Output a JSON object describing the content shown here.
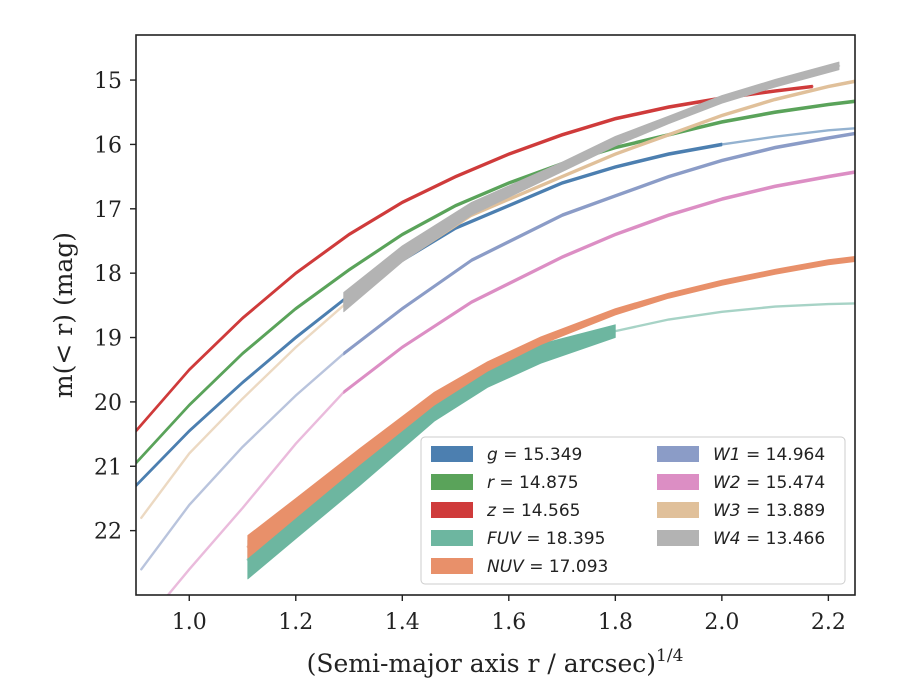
{
  "chart_data": {
    "type": "line",
    "xlabel": "(Semi-major axis r / arcsec)",
    "xlabel_sup": "1/4",
    "ylabel": "m(< r) (mag)",
    "xlim": [
      0.9,
      2.25
    ],
    "ylim": [
      23.0,
      14.3
    ],
    "y_inverted": true,
    "grid": false,
    "legend_position": "lower-right",
    "legend_columns": 2,
    "x_ticks": [
      1.0,
      1.2,
      1.4,
      1.6,
      1.8,
      2.0,
      2.2
    ],
    "x_tick_labels": [
      "1.0",
      "1.2",
      "1.4",
      "1.6",
      "1.8",
      "2.0",
      "2.2"
    ],
    "y_ticks": [
      15,
      16,
      17,
      18,
      19,
      20,
      21,
      22
    ],
    "y_tick_labels": [
      "15",
      "16",
      "17",
      "18",
      "19",
      "20",
      "21",
      "22"
    ],
    "series": [
      {
        "name": "g = 15.349",
        "label_var": "g",
        "label_val": "15.349",
        "color": "#4c7fb0",
        "x": [
          0.9,
          1.0,
          1.1,
          1.2,
          1.3,
          1.4,
          1.5,
          1.6,
          1.7,
          1.8,
          1.9,
          2.0,
          2.1,
          2.2,
          2.25
        ],
        "y": [
          21.3,
          20.45,
          19.7,
          19.0,
          18.35,
          17.8,
          17.3,
          16.95,
          16.6,
          16.35,
          16.15,
          16.0,
          15.88,
          15.78,
          15.75
        ],
        "width": [
          0,
          0,
          0,
          0,
          0,
          0,
          0,
          0,
          0,
          0,
          0,
          0,
          0,
          0,
          0
        ],
        "solid_range": [
          0.9,
          2.0
        ]
      },
      {
        "name": "r = 14.875",
        "label_var": "r",
        "label_val": "14.875",
        "color": "#5aa35a",
        "x": [
          0.9,
          1.0,
          1.1,
          1.2,
          1.3,
          1.4,
          1.5,
          1.6,
          1.7,
          1.8,
          1.9,
          2.0,
          2.1,
          2.2,
          2.25
        ],
        "y": [
          20.95,
          20.05,
          19.25,
          18.55,
          17.95,
          17.4,
          16.95,
          16.6,
          16.3,
          16.05,
          15.85,
          15.65,
          15.5,
          15.38,
          15.33
        ],
        "width": [
          0,
          0,
          0,
          0,
          0,
          0,
          0,
          0,
          0,
          0,
          0,
          0,
          0,
          0,
          0
        ],
        "solid_range": [
          0.9,
          2.25
        ]
      },
      {
        "name": "z = 14.565",
        "label_var": "z",
        "label_val": "14.565",
        "color": "#cf3b3b",
        "x": [
          0.9,
          1.0,
          1.1,
          1.2,
          1.3,
          1.4,
          1.5,
          1.6,
          1.7,
          1.8,
          1.9,
          2.0,
          2.1,
          2.17
        ],
        "y": [
          20.45,
          19.5,
          18.7,
          18.0,
          17.4,
          16.9,
          16.5,
          16.15,
          15.85,
          15.6,
          15.42,
          15.28,
          15.17,
          15.1
        ],
        "width": [
          0,
          0,
          0,
          0,
          0,
          0,
          0,
          0,
          0,
          0,
          0,
          0,
          0,
          0
        ],
        "solid_range": [
          0.9,
          2.17
        ]
      },
      {
        "name": "FUV = 18.395",
        "label_var": "FUV",
        "label_val": "18.395",
        "color": "#6db6a0",
        "x": [
          1.11,
          1.2,
          1.32,
          1.46,
          1.56,
          1.66,
          1.8,
          1.9,
          2.0,
          2.1,
          2.2,
          2.25
        ],
        "y": [
          22.45,
          21.85,
          21.05,
          20.1,
          19.6,
          19.25,
          18.9,
          18.72,
          18.6,
          18.52,
          18.48,
          18.47
        ],
        "width": [
          0.6,
          0.55,
          0.5,
          0.4,
          0.35,
          0.3,
          0.2,
          0,
          0,
          0,
          0,
          0
        ],
        "solid_range": [
          1.11,
          1.8
        ]
      },
      {
        "name": "NUV = 17.093",
        "label_var": "NUV",
        "label_val": "17.093",
        "color": "#e8906a",
        "x": [
          1.11,
          1.2,
          1.32,
          1.46,
          1.56,
          1.66,
          1.8,
          1.9,
          2.0,
          2.1,
          2.2,
          2.25
        ],
        "y": [
          22.25,
          21.65,
          20.85,
          19.95,
          19.45,
          19.05,
          18.6,
          18.35,
          18.15,
          17.98,
          17.83,
          17.78
        ],
        "width": [
          0.35,
          0.3,
          0.25,
          0.2,
          0.15,
          0.12,
          0.1,
          0.08,
          0.08,
          0.08,
          0.08,
          0.08
        ],
        "solid_range": [
          1.11,
          2.25
        ]
      },
      {
        "name": "W1 = 14.964",
        "label_var": "W1",
        "label_val": "14.964",
        "color": "#8b9cc7",
        "x": [
          0.91,
          1.0,
          1.1,
          1.2,
          1.29,
          1.4,
          1.53,
          1.7,
          1.8,
          1.9,
          2.0,
          2.1,
          2.2,
          2.25
        ],
        "y": [
          22.6,
          21.6,
          20.7,
          19.9,
          19.25,
          18.55,
          17.8,
          17.1,
          16.8,
          16.5,
          16.25,
          16.05,
          15.9,
          15.83
        ],
        "width": [
          0,
          0,
          0,
          0,
          0,
          0,
          0,
          0,
          0,
          0,
          0,
          0,
          0,
          0
        ],
        "solid_range": [
          1.29,
          2.25
        ]
      },
      {
        "name": "W2 = 15.474",
        "label_var": "W2",
        "label_val": "15.474",
        "color": "#dc8ec4",
        "x": [
          0.96,
          1.0,
          1.1,
          1.2,
          1.29,
          1.4,
          1.53,
          1.7,
          1.8,
          1.9,
          2.0,
          2.1,
          2.2,
          2.25
        ],
        "y": [
          23.0,
          22.6,
          21.65,
          20.65,
          19.85,
          19.15,
          18.45,
          17.75,
          17.4,
          17.1,
          16.85,
          16.65,
          16.5,
          16.43
        ],
        "width": [
          0,
          0,
          0,
          0,
          0,
          0,
          0,
          0,
          0,
          0,
          0,
          0,
          0,
          0
        ],
        "solid_range": [
          1.29,
          2.25
        ]
      },
      {
        "name": "W3 = 13.889",
        "label_var": "W3",
        "label_val": "13.889",
        "color": "#e0c09a",
        "x": [
          0.91,
          1.0,
          1.1,
          1.2,
          1.29,
          1.4,
          1.53,
          1.7,
          1.8,
          1.9,
          2.0,
          2.1,
          2.2,
          2.25
        ],
        "y": [
          21.8,
          20.8,
          19.95,
          19.15,
          18.5,
          17.8,
          17.1,
          16.5,
          16.15,
          15.85,
          15.55,
          15.3,
          15.1,
          15.02
        ],
        "width": [
          0,
          0,
          0,
          0,
          0,
          0,
          0,
          0,
          0,
          0,
          0,
          0,
          0,
          0
        ],
        "solid_range": [
          1.29,
          2.25
        ]
      },
      {
        "name": "W4 = 13.466",
        "label_var": "W4",
        "label_val": "13.466",
        "color": "#b3b3b3",
        "x": [
          1.29,
          1.4,
          1.53,
          1.7,
          1.8,
          1.9,
          2.0,
          2.1,
          2.22
        ],
        "y": [
          18.45,
          17.7,
          17.0,
          16.35,
          15.95,
          15.62,
          15.3,
          15.05,
          14.78
        ],
        "width": [
          0.3,
          0.25,
          0.2,
          0.15,
          0.15,
          0.12,
          0.12,
          0.12,
          0.12
        ],
        "solid_range": [
          1.29,
          2.22
        ]
      }
    ]
  }
}
